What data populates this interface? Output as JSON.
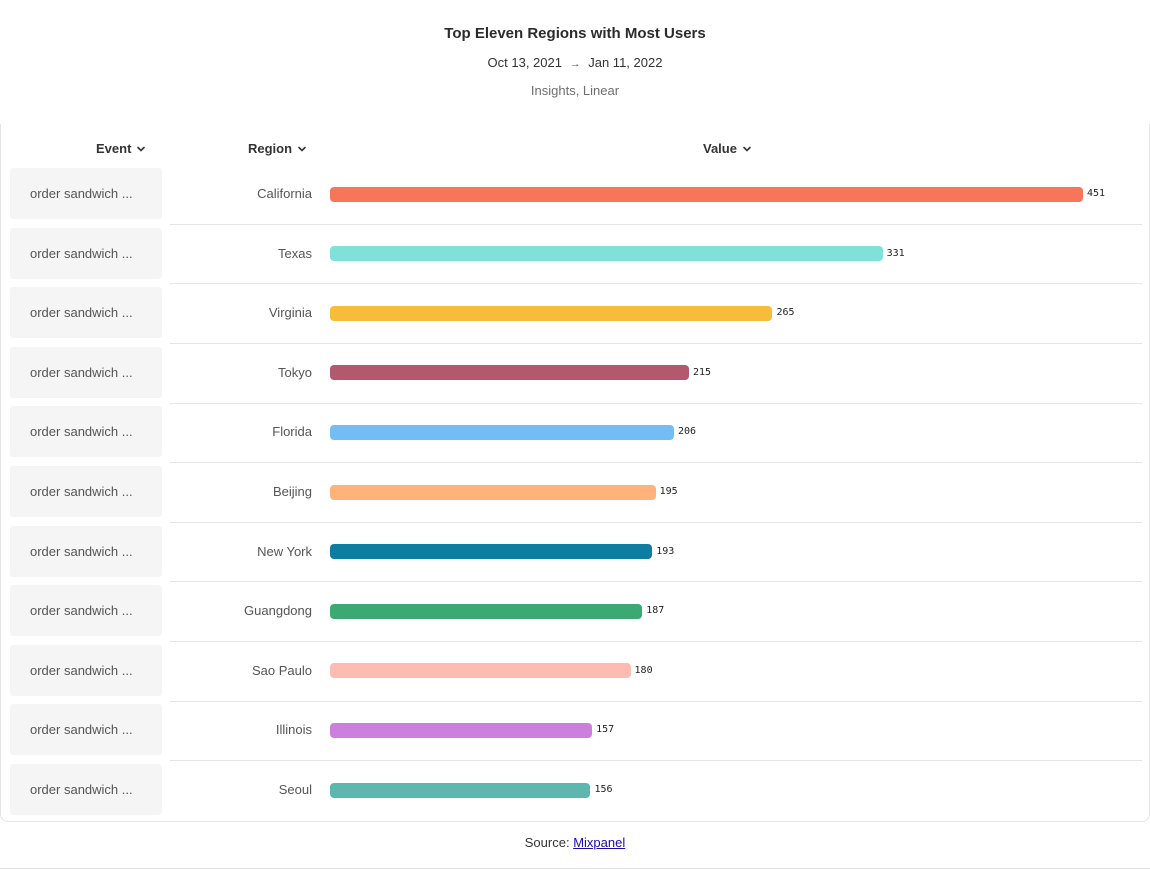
{
  "header": {
    "title": "Top Eleven Regions with Most Users",
    "date_start": "Oct 13, 2021",
    "date_arrow": "→",
    "date_end": "Jan 11, 2022",
    "subtitle": "Insights, Linear"
  },
  "columns": {
    "event": "Event",
    "region": "Region",
    "value": "Value"
  },
  "footer": {
    "prefix": "Source: ",
    "link_text": "Mixpanel"
  },
  "chart_data": {
    "type": "bar",
    "orientation": "horizontal",
    "event_label": "order sandwich ...",
    "categories": [
      "California",
      "Texas",
      "Virginia",
      "Tokyo",
      "Florida",
      "Beijing",
      "New York",
      "Guangdong",
      "Sao Paulo",
      "Illinois",
      "Seoul"
    ],
    "values": [
      451,
      331,
      265,
      215,
      206,
      195,
      193,
      187,
      180,
      157,
      156
    ],
    "colors": [
      "#f77558",
      "#80e1d9",
      "#f8bc3b",
      "#b2596e",
      "#72bef4",
      "#ffb27a",
      "#0d7ea0",
      "#3ba974",
      "#febbb2",
      "#cb80dc",
      "#5cb7af"
    ],
    "title": "Top Eleven Regions with Most Users"
  }
}
